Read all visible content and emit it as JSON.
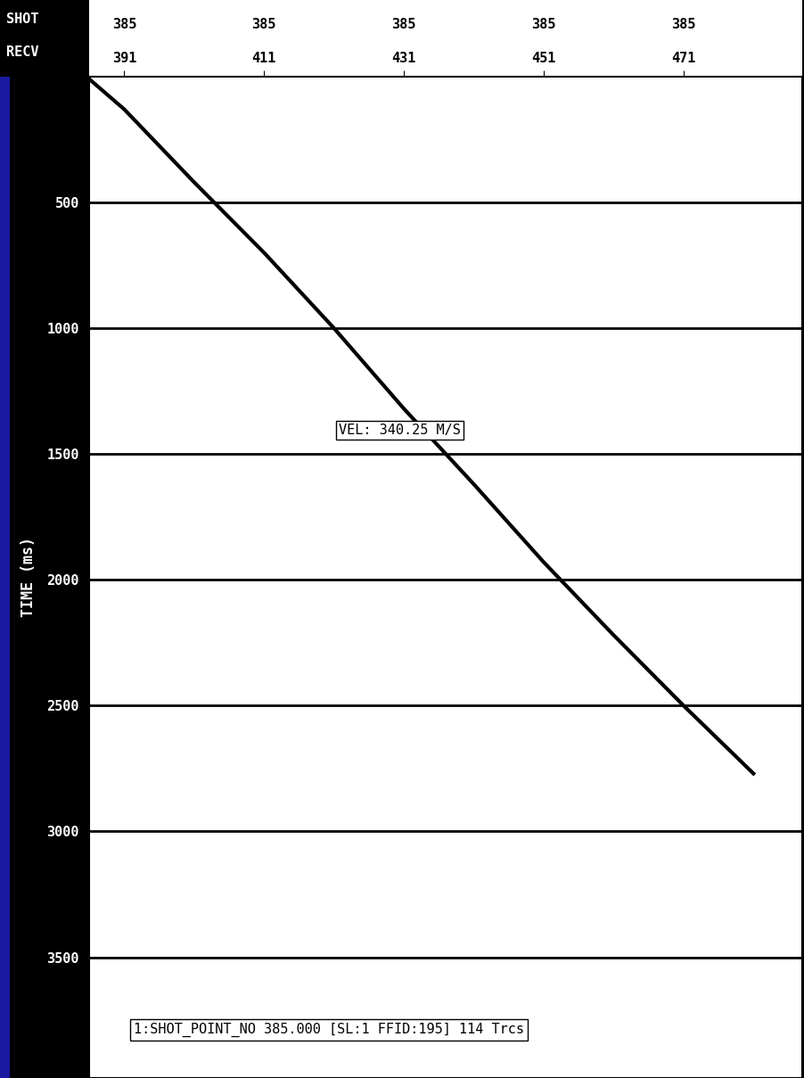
{
  "chart_data": {
    "type": "line",
    "row_labels": [
      "SHOT",
      "RECV"
    ],
    "shot": 385,
    "ylabel": "TIME (ms)",
    "x": [
      386,
      391,
      401,
      411,
      421,
      431,
      441,
      451,
      461,
      471,
      481
    ],
    "values": [
      10,
      130,
      420,
      700,
      1000,
      1320,
      1620,
      1930,
      2220,
      2500,
      2770
    ],
    "color": "#000000",
    "xlim": [
      386,
      488
    ],
    "xticks": [
      391,
      411,
      431,
      451,
      471
    ],
    "ylim": [
      3980,
      0
    ],
    "yticks": [
      500,
      1000,
      1500,
      2000,
      2500,
      3000,
      3500
    ],
    "grid": true,
    "annotations": [
      "VEL: 340.25 M/S",
      "1:SHOT_POINT_NO 385.000 [SL:1 FFID:195] 114 Trcs"
    ]
  }
}
